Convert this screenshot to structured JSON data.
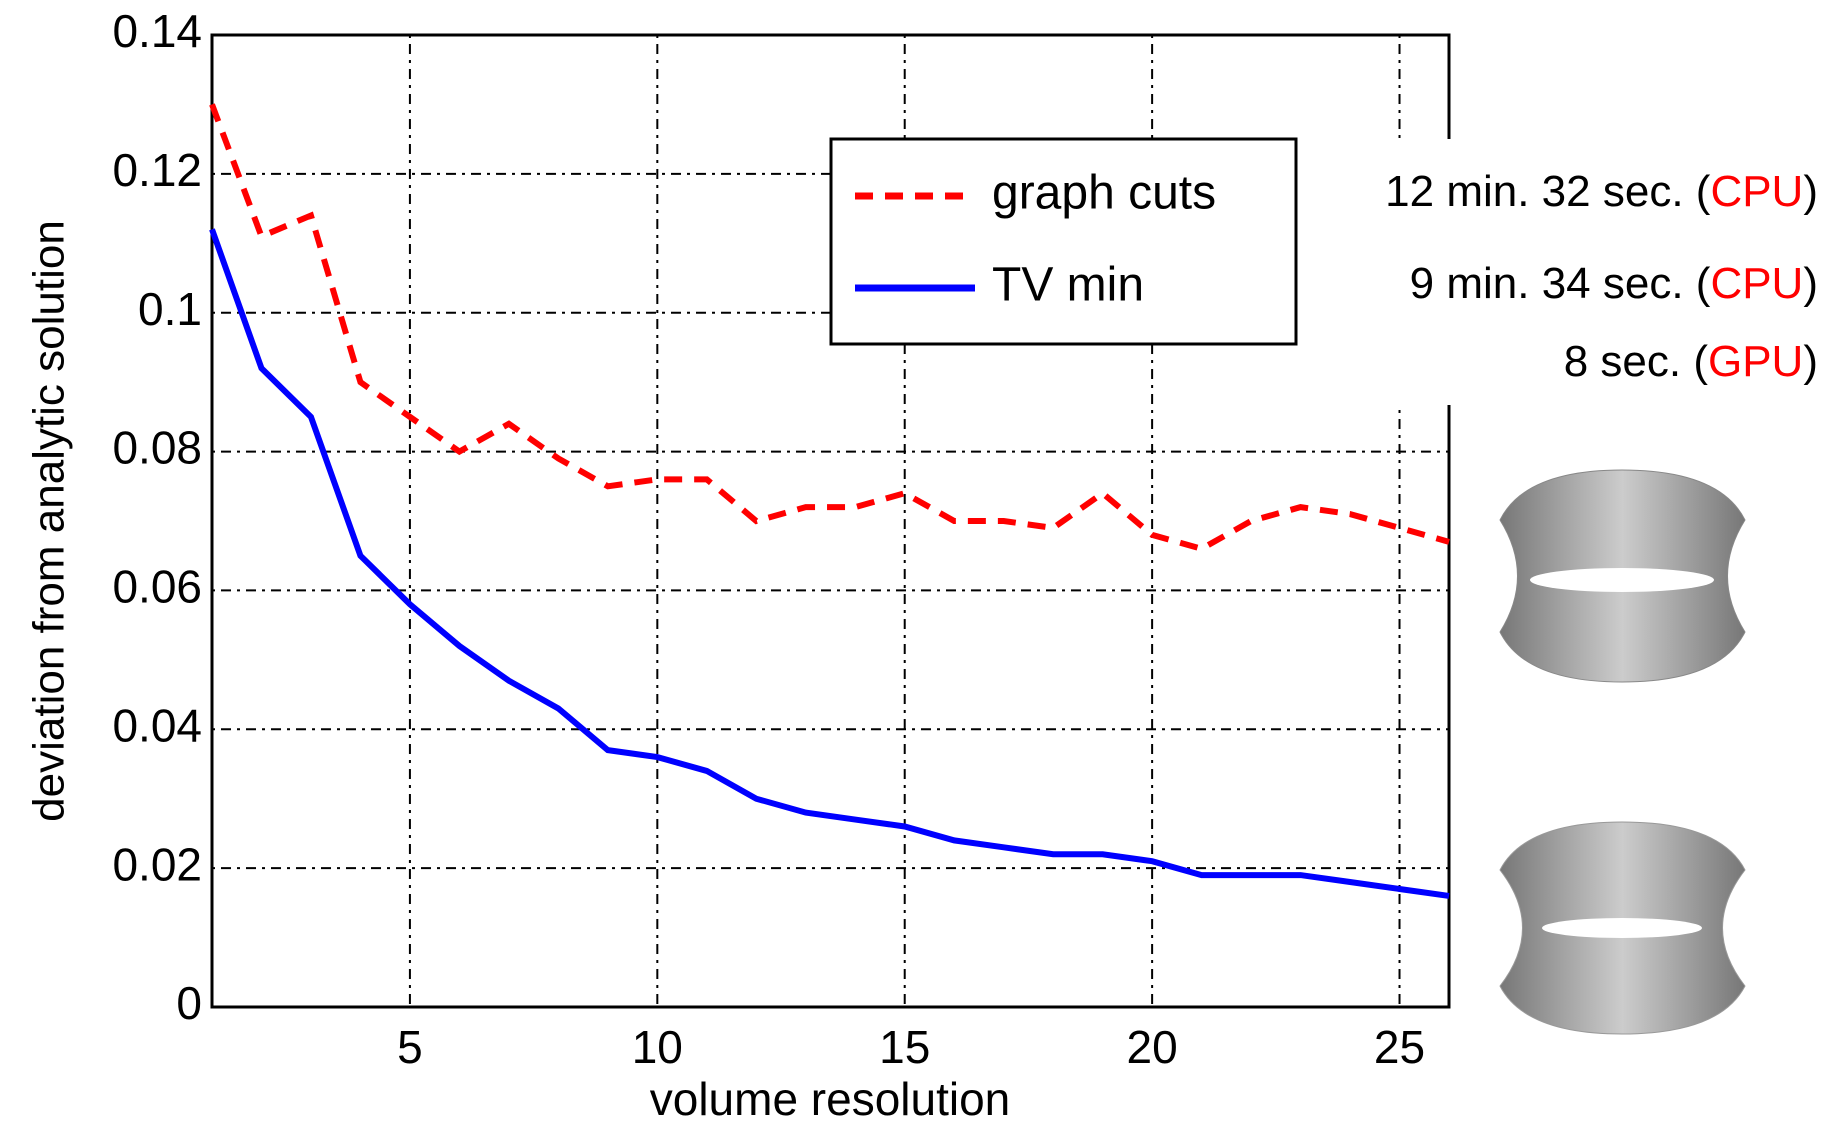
{
  "chart_data": {
    "type": "line",
    "xlabel": "volume resolution",
    "ylabel": "deviation from analytic solution",
    "x": [
      1,
      2,
      3,
      4,
      5,
      6,
      7,
      8,
      9,
      10,
      11,
      12,
      13,
      14,
      15,
      16,
      17,
      18,
      19,
      20,
      21,
      22,
      23,
      24,
      25,
      26
    ],
    "series": [
      {
        "name": "graph cuts",
        "color": "#ff0000",
        "dashed": true,
        "values": [
          0.13,
          0.111,
          0.114,
          0.09,
          0.085,
          0.08,
          0.084,
          0.079,
          0.075,
          0.076,
          0.076,
          0.07,
          0.072,
          0.072,
          0.074,
          0.07,
          0.07,
          0.069,
          0.074,
          0.068,
          0.066,
          0.07,
          0.072,
          0.071,
          0.069,
          0.067
        ]
      },
      {
        "name": "TV min",
        "color": "#0000ff",
        "dashed": false,
        "values": [
          0.112,
          0.092,
          0.085,
          0.065,
          0.058,
          0.052,
          0.047,
          0.043,
          0.037,
          0.036,
          0.034,
          0.03,
          0.028,
          0.027,
          0.026,
          0.024,
          0.023,
          0.022,
          0.022,
          0.021,
          0.019,
          0.019,
          0.019,
          0.018,
          0.017,
          0.016
        ]
      }
    ],
    "xlim": [
      1,
      26
    ],
    "xticks": [
      5,
      10,
      15,
      20,
      25
    ],
    "ylim": [
      0,
      0.14
    ],
    "yticks": [
      0,
      0.02,
      0.04,
      0.06,
      0.08,
      0.1,
      0.12,
      0.14
    ],
    "grid": true,
    "legend": "upper right",
    "annotations": [
      {
        "prefix": "12 min. 32 sec. (",
        "device": "CPU",
        "suffix": ")"
      },
      {
        "prefix": "9 min. 34 sec. (",
        "device": "CPU",
        "suffix": ")"
      },
      {
        "prefix": "8 sec. (",
        "device": "GPU",
        "suffix": ")"
      }
    ],
    "annotation_device_color": "#ff0000"
  }
}
